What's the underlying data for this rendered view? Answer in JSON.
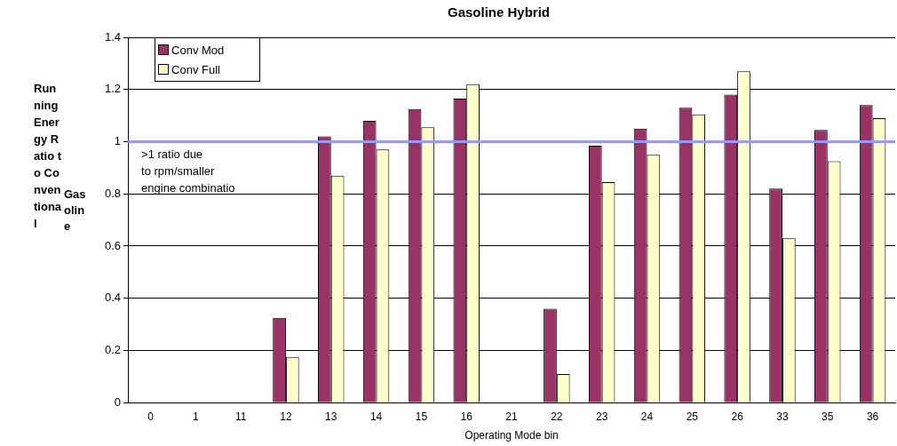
{
  "chart_data": {
    "type": "bar",
    "title": "Gasoline Hybrid",
    "xlabel": "Operating Mode bin",
    "ylabel": "Running Energy Ratio to Conventional",
    "annotations": [
      "Gasoline",
      ">1 ratio due to rpm/smaller engine combinatio"
    ],
    "categories": [
      "0",
      "1",
      "11",
      "12",
      "13",
      "14",
      "15",
      "16",
      "21",
      "22",
      "23",
      "24",
      "25",
      "26",
      "33",
      "35",
      "36"
    ],
    "series": [
      {
        "name": "Conv Mod",
        "color": "#993366",
        "values": [
          null,
          null,
          null,
          0.325,
          1.02,
          1.08,
          1.125,
          1.165,
          null,
          0.36,
          0.985,
          1.05,
          1.13,
          1.18,
          0.82,
          1.045,
          1.14
        ]
      },
      {
        "name": "Conv Full",
        "color": "#ffffcc",
        "values": [
          null,
          null,
          null,
          0.175,
          0.87,
          0.97,
          1.055,
          1.22,
          null,
          0.11,
          0.845,
          0.95,
          1.105,
          1.27,
          0.63,
          0.925,
          1.09
        ]
      }
    ],
    "ylim": [
      0,
      1.4
    ],
    "yticks": [
      0,
      0.2,
      0.4,
      0.6,
      0.8,
      1,
      1.2,
      1.4
    ],
    "grid": "y",
    "legend": "top left",
    "ref_lines": [
      {
        "axis": "y",
        "value": 1,
        "color": "#9999ff"
      }
    ]
  }
}
